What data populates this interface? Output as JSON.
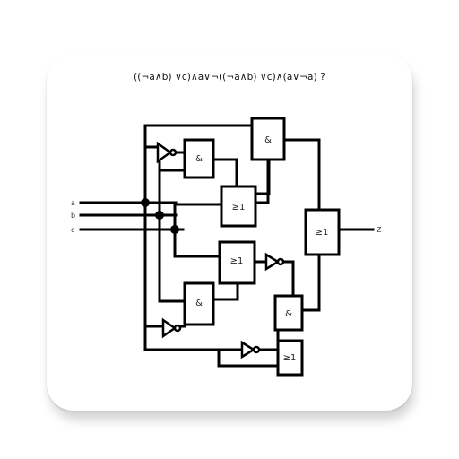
{
  "formula": "((¬a∧b) ∨c)∧a∨¬((¬a∧b) ∨c)∧(a∨¬a) ?",
  "inputs": {
    "a": "a",
    "b": "b",
    "c": "c"
  },
  "output": "Z",
  "gates": {
    "and_top": "&",
    "and_left_upper": "&",
    "or_upper_middle": "≥1",
    "or_final": "≥1",
    "or_lower_middle": "≥1",
    "and_left_lower": "&",
    "and_right_lower": "&",
    "or_bottom": "≥1"
  }
}
